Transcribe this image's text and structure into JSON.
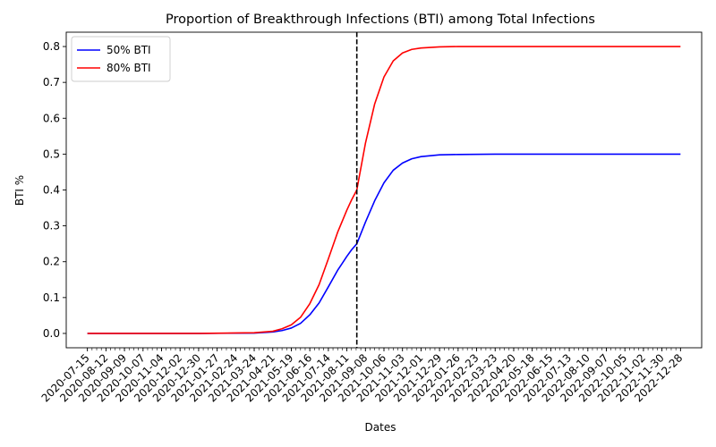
{
  "chart_data": {
    "type": "line",
    "title": "Proportion of Breakthrough Infections (BTI) among Total Infections",
    "xlabel": "Dates",
    "ylabel": "BTI %",
    "x_start": "2020-07-15",
    "x_end": "2022-12-28",
    "xlim": [
      "2020-06-13",
      "2023-01-29"
    ],
    "ylim": [
      -0.04,
      0.84
    ],
    "yticks": [
      0.0,
      0.1,
      0.2,
      0.3,
      0.4,
      0.5,
      0.6,
      0.7,
      0.8
    ],
    "ytick_labels": [
      "0.0",
      "0.1",
      "0.2",
      "0.3",
      "0.4",
      "0.5",
      "0.6",
      "0.7",
      "0.8"
    ],
    "xticks": [
      "2020-07-15",
      "2020-08-12",
      "2020-09-09",
      "2020-10-07",
      "2020-11-04",
      "2020-12-02",
      "2020-12-30",
      "2021-01-27",
      "2021-02-24",
      "2021-03-24",
      "2021-04-21",
      "2021-05-19",
      "2021-06-16",
      "2021-07-14",
      "2021-08-11",
      "2021-09-08",
      "2021-10-06",
      "2021-11-03",
      "2021-12-01",
      "2021-12-29",
      "2022-01-26",
      "2022-02-23",
      "2022-03-23",
      "2022-04-20",
      "2022-05-18",
      "2022-06-15",
      "2022-07-13",
      "2022-08-10",
      "2022-09-07",
      "2022-10-05",
      "2022-11-02",
      "2022-11-30",
      "2022-12-28"
    ],
    "vline": {
      "x": "2021-08-26",
      "style": "dashed",
      "color": "#000000"
    },
    "legend_position": "top-left",
    "grid": false,
    "series": [
      {
        "name": "50% BTI",
        "color": "#0000ff",
        "x": [
          "2020-07-15",
          "2020-10-07",
          "2021-01-01",
          "2021-03-24",
          "2021-04-21",
          "2021-05-05",
          "2021-05-19",
          "2021-06-02",
          "2021-06-16",
          "2021-06-30",
          "2021-07-14",
          "2021-07-28",
          "2021-08-11",
          "2021-08-18",
          "2021-08-26",
          "2021-09-08",
          "2021-09-22",
          "2021-10-06",
          "2021-10-20",
          "2021-11-03",
          "2021-11-17",
          "2021-12-01",
          "2021-12-29",
          "2022-01-26",
          "2022-03-23",
          "2022-07-13",
          "2022-12-28"
        ],
        "y": [
          0.0,
          0.0,
          0.0,
          0.001,
          0.004,
          0.008,
          0.015,
          0.028,
          0.052,
          0.085,
          0.13,
          0.176,
          0.215,
          0.233,
          0.25,
          0.31,
          0.37,
          0.42,
          0.455,
          0.475,
          0.487,
          0.493,
          0.498,
          0.499,
          0.5,
          0.5,
          0.5
        ]
      },
      {
        "name": "80% BTI",
        "color": "#ff0000",
        "x": [
          "2020-07-15",
          "2020-10-07",
          "2021-01-01",
          "2021-03-24",
          "2021-04-21",
          "2021-05-05",
          "2021-05-19",
          "2021-06-02",
          "2021-06-16",
          "2021-06-30",
          "2021-07-14",
          "2021-07-28",
          "2021-08-11",
          "2021-08-18",
          "2021-08-26",
          "2021-09-08",
          "2021-09-22",
          "2021-10-06",
          "2021-10-20",
          "2021-11-03",
          "2021-11-17",
          "2021-12-01",
          "2021-12-29",
          "2022-01-26",
          "2022-03-23",
          "2022-07-13",
          "2022-12-28"
        ],
        "y": [
          0.0,
          0.0,
          0.0,
          0.002,
          0.006,
          0.013,
          0.024,
          0.045,
          0.083,
          0.136,
          0.208,
          0.282,
          0.344,
          0.372,
          0.4,
          0.53,
          0.64,
          0.715,
          0.76,
          0.782,
          0.792,
          0.796,
          0.799,
          0.8,
          0.8,
          0.8,
          0.8
        ]
      }
    ]
  }
}
